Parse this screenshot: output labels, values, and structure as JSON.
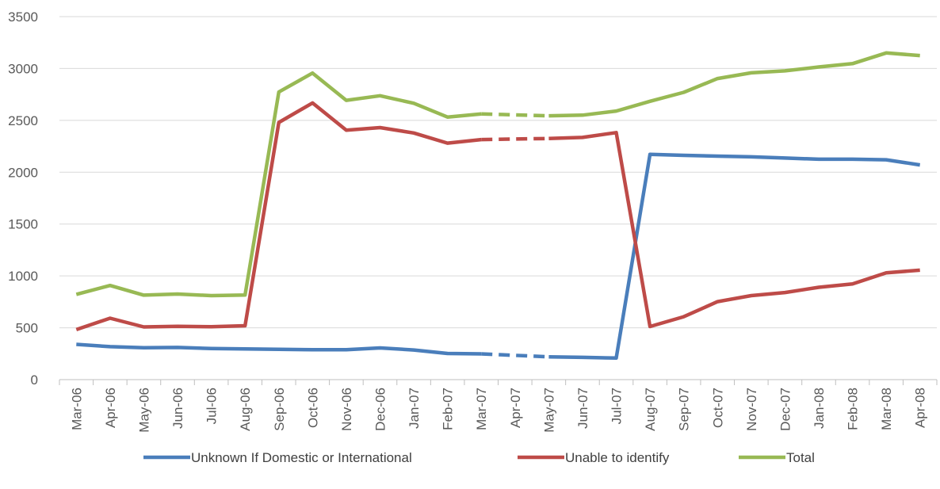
{
  "chart_data": {
    "type": "line",
    "title": "",
    "xlabel": "",
    "ylabel": "",
    "ylim": [
      0,
      3500
    ],
    "yticks": [
      0,
      500,
      1000,
      1500,
      2000,
      2500,
      3000,
      3500
    ],
    "grid": "horizontal",
    "legend_position": "bottom",
    "categories": [
      "Mar-06",
      "Apr-06",
      "May-06",
      "Jun-06",
      "Jul-06",
      "Aug-06",
      "Sep-06",
      "Oct-06",
      "Nov-06",
      "Dec-06",
      "Jan-07",
      "Feb-07",
      "Mar-07",
      "Apr-07",
      "May-07",
      "Jun-07",
      "Jul-07",
      "Aug-07",
      "Sep-07",
      "Oct-07",
      "Nov-07",
      "Dec-07",
      "Jan-08",
      "Feb-08",
      "Mar-08",
      "Apr-08"
    ],
    "gap_index": 13,
    "series": [
      {
        "name": "Unknown If Domestic or International",
        "color": "#4a7ebb",
        "values": [
          340,
          318,
          308,
          310,
          300,
          296,
          293,
          288,
          288,
          306,
          286,
          252,
          248,
          null,
          220,
          215,
          208,
          2172,
          2163,
          2155,
          2148,
          2137,
          2125,
          2125,
          2120,
          2070
        ]
      },
      {
        "name": "Unable to identify",
        "color": "#be4b48",
        "values": [
          482,
          592,
          508,
          514,
          510,
          520,
          2480,
          2668,
          2405,
          2430,
          2378,
          2280,
          2315,
          null,
          2325,
          2335,
          2382,
          512,
          607,
          752,
          810,
          840,
          890,
          922,
          1030,
          1055
        ]
      },
      {
        "name": "Total",
        "color": "#98b954",
        "values": [
          822,
          908,
          815,
          825,
          810,
          816,
          2773,
          2956,
          2693,
          2737,
          2665,
          2532,
          2562,
          null,
          2544,
          2550,
          2590,
          2684,
          2770,
          2903,
          2958,
          2977,
          3015,
          3047,
          3150,
          3125
        ]
      }
    ]
  }
}
